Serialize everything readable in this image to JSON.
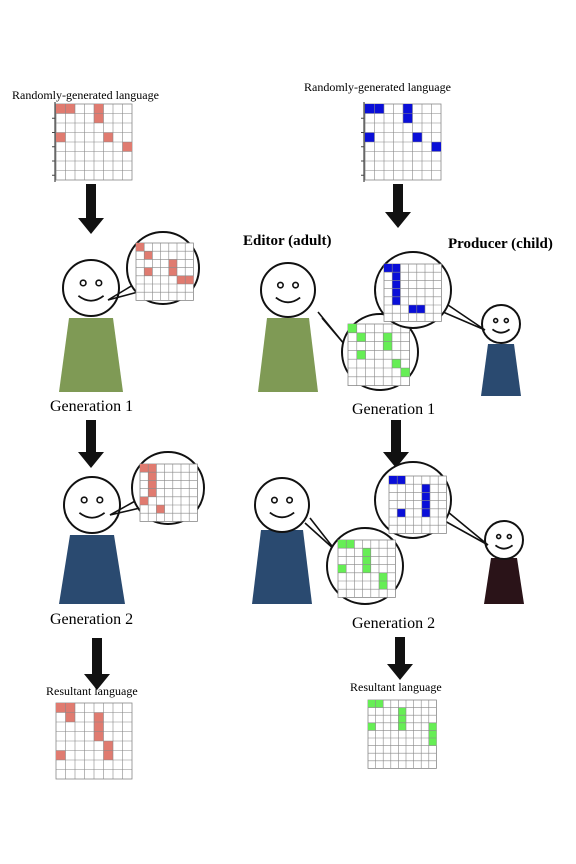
{
  "labels": {
    "random_left": "Randomly-generated language",
    "random_right": "Randomly-generated language",
    "editor": "Editor (adult)",
    "producer": "Producer (child)",
    "gen1_left": "Generation 1",
    "gen1_right": "Generation 1",
    "gen2_left": "Generation 2",
    "gen2_right": "Generation 2",
    "result_left": "Resultant language",
    "result_right": "Resultant language"
  },
  "colors": {
    "red": "#e07b70",
    "blue": "#0a0fd8",
    "green": "#66ee55",
    "olive": "#7f9a55",
    "navy": "#2a4a70",
    "dark_maroon": "#2a1318",
    "arrow": "#111111",
    "grid_line": "#888888"
  },
  "languages": {
    "random_left": [
      [
        0,
        0
      ],
      [
        1,
        0
      ],
      [
        4,
        0
      ],
      [
        4,
        1
      ],
      [
        0,
        3
      ],
      [
        5,
        3
      ],
      [
        7,
        4
      ]
    ],
    "random_right": [
      [
        0,
        0
      ],
      [
        1,
        0
      ],
      [
        4,
        0
      ],
      [
        4,
        1
      ],
      [
        0,
        3
      ],
      [
        5,
        3
      ],
      [
        7,
        4
      ]
    ],
    "gen1_left": [
      [
        0,
        0
      ],
      [
        1,
        1
      ],
      [
        4,
        2
      ],
      [
        4,
        3
      ],
      [
        1,
        3
      ],
      [
        5,
        4
      ],
      [
        6,
        4
      ]
    ],
    "gen2_left": [
      [
        0,
        0
      ],
      [
        1,
        0
      ],
      [
        1,
        1
      ],
      [
        1,
        2
      ],
      [
        1,
        3
      ],
      [
        0,
        4
      ],
      [
        2,
        5
      ]
    ],
    "gen1_editor": [
      [
        0,
        0
      ],
      [
        1,
        1
      ],
      [
        4,
        1
      ],
      [
        4,
        2
      ],
      [
        1,
        3
      ],
      [
        5,
        4
      ],
      [
        6,
        5
      ]
    ],
    "gen1_producer": [
      [
        0,
        0
      ],
      [
        1,
        0
      ],
      [
        1,
        1
      ],
      [
        1,
        2
      ],
      [
        1,
        3
      ],
      [
        1,
        4
      ],
      [
        4,
        5
      ],
      [
        3,
        5
      ]
    ],
    "gen2_producer": [
      [
        0,
        0
      ],
      [
        1,
        0
      ],
      [
        4,
        1
      ],
      [
        4,
        2
      ],
      [
        4,
        3
      ],
      [
        1,
        4
      ],
      [
        4,
        4
      ]
    ],
    "gen2_editor": [
      [
        0,
        0
      ],
      [
        1,
        0
      ],
      [
        3,
        1
      ],
      [
        3,
        2
      ],
      [
        3,
        3
      ],
      [
        5,
        4
      ],
      [
        5,
        5
      ],
      [
        0,
        3
      ]
    ],
    "result_left": [
      [
        0,
        0
      ],
      [
        1,
        0
      ],
      [
        1,
        1
      ],
      [
        4,
        1
      ],
      [
        4,
        2
      ],
      [
        4,
        3
      ],
      [
        5,
        4
      ],
      [
        0,
        5
      ],
      [
        5,
        5
      ]
    ],
    "result_right": [
      [
        0,
        0
      ],
      [
        1,
        0
      ],
      [
        4,
        1
      ],
      [
        4,
        2
      ],
      [
        0,
        3
      ],
      [
        4,
        3
      ],
      [
        8,
        3
      ],
      [
        8,
        4
      ],
      [
        8,
        5
      ]
    ]
  }
}
